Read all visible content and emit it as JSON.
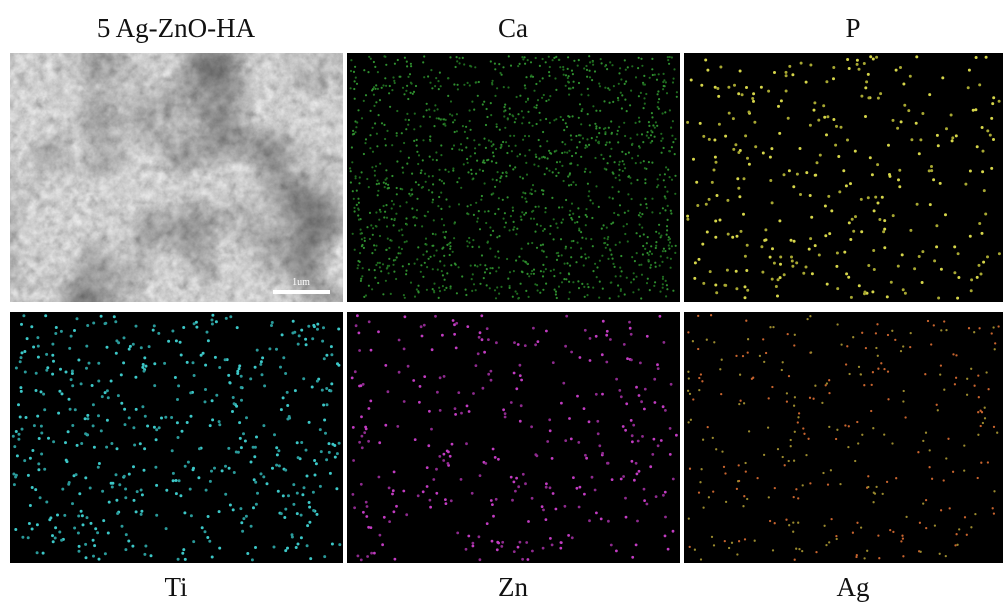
{
  "panels": [
    {
      "label": "5 Ag-ZnO-HA",
      "scale_bar": "1um"
    },
    {
      "label": "Ca"
    },
    {
      "label": "P"
    },
    {
      "label": "Ti"
    },
    {
      "label": "Zn"
    },
    {
      "label": "Ag"
    }
  ]
}
